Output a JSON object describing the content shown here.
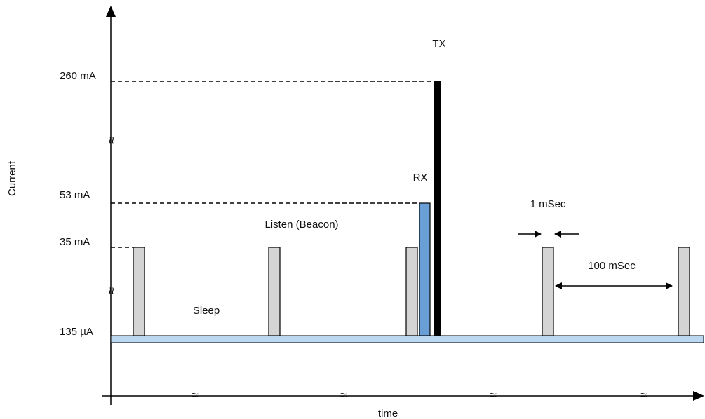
{
  "diagram": {
    "y_axis_label": "Current",
    "x_axis_label": "time",
    "levels": {
      "tx": "260 mA",
      "rx": "53 mA",
      "listen": "35 mA",
      "sleep": "135 µA"
    },
    "labels": {
      "tx": "TX",
      "rx": "RX",
      "listen": "Listen (Beacon)",
      "sleep": "Sleep",
      "pulse_width": "1 mSec",
      "interval": "100 mSec"
    },
    "break_glyph": "≈"
  },
  "colors": {
    "sleep_bar": "#bcd8f0",
    "listen_pulse": "#d4d4d4",
    "rx_pulse": "#6a9fd6",
    "tx_pulse": "#000000",
    "stroke": "#000000"
  }
}
